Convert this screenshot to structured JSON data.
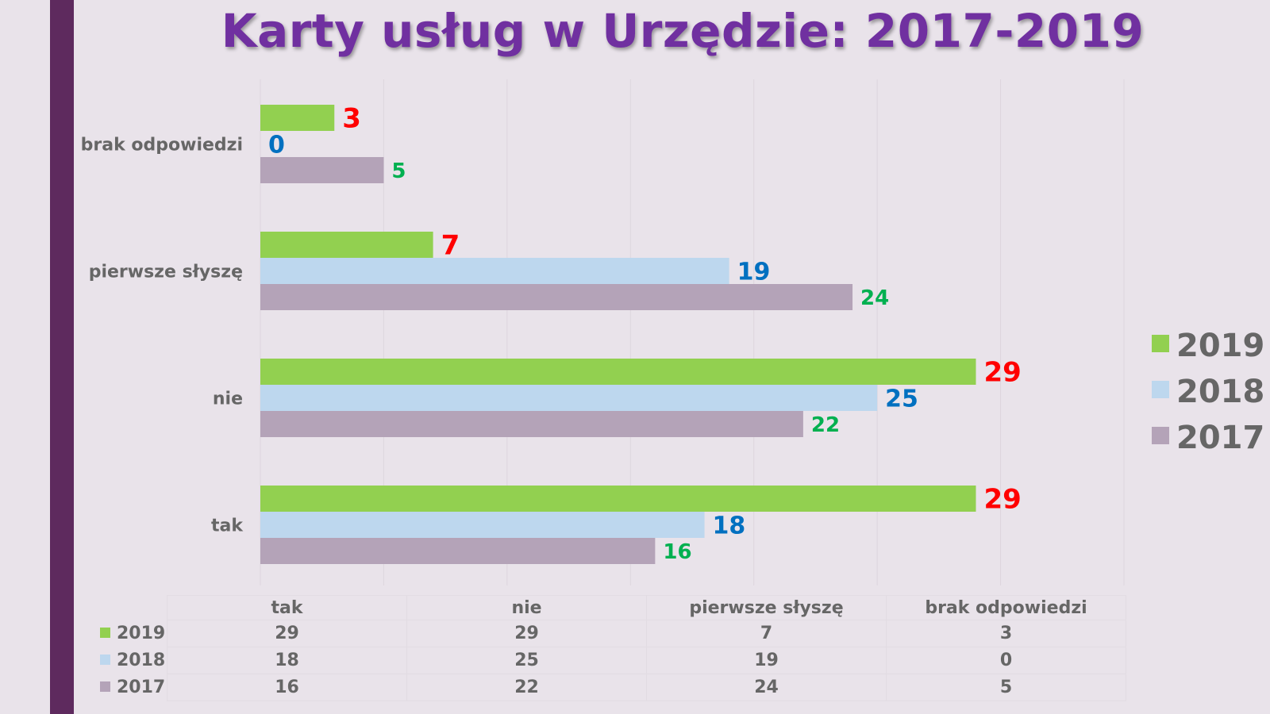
{
  "title": "Karty usług w Urzędzie: 2017-2019",
  "colors": {
    "2019": "#92d050",
    "2018": "#bdd7ee",
    "2017": "#b4a3b8",
    "label_2019": "#ff0000",
    "label_2018": "#0070c0",
    "label_2017": "#00b050"
  },
  "chart_data": {
    "type": "bar",
    "orientation": "horizontal",
    "categories": [
      "tak",
      "nie",
      "pierwsze słyszę",
      "brak odpowiedzi"
    ],
    "series": [
      {
        "name": "2019",
        "values": [
          29,
          29,
          7,
          3
        ]
      },
      {
        "name": "2018",
        "values": [
          18,
          25,
          19,
          0
        ]
      },
      {
        "name": "2017",
        "values": [
          16,
          22,
          24,
          5
        ]
      }
    ],
    "xlim": [
      0,
      35
    ],
    "grid": true,
    "legend_position": "right"
  },
  "table": {
    "headers": [
      "tak",
      "nie",
      "pierwsze słyszę",
      "brak odpowiedzi"
    ],
    "rows": [
      {
        "label": "2019",
        "cells": [
          "29",
          "29",
          "7",
          "3"
        ]
      },
      {
        "label": "2018",
        "cells": [
          "18",
          "25",
          "19",
          "0"
        ]
      },
      {
        "label": "2017",
        "cells": [
          "16",
          "22",
          "24",
          "5"
        ]
      }
    ]
  }
}
